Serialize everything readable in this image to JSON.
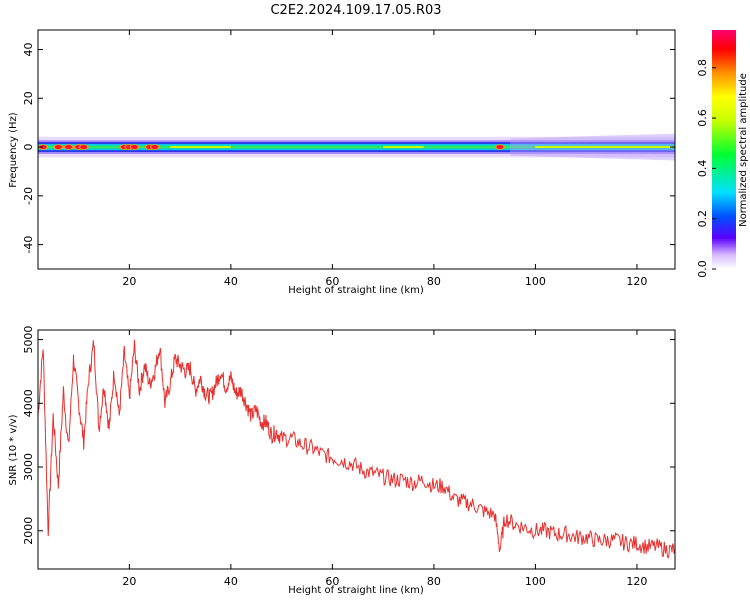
{
  "title": "C2E2.2024.109.17.05.R03",
  "chart_data": [
    {
      "type": "heatmap",
      "title": "",
      "xlabel": "Height of straight line (km)",
      "ylabel": "Frequency (Hz)",
      "xlim": [
        2,
        127.5
      ],
      "ylim": [
        -50,
        48
      ],
      "xticks": [
        20,
        40,
        60,
        80,
        100,
        120
      ],
      "yticks": [
        40,
        20,
        0,
        -20,
        -40
      ],
      "colorbar": {
        "label": "Normalized spectral amplitude",
        "range": [
          0.0,
          0.95
        ],
        "ticks": [
          0.0,
          0.2,
          0.4,
          0.6,
          0.8
        ]
      },
      "band_center_hz": 0,
      "band_halfwidth_hz": [
        3,
        3,
        3,
        3,
        3,
        4
      ],
      "band_profile_height_km": [
        2,
        20,
        40,
        60,
        80,
        100,
        127.5
      ],
      "hotspots_km": [
        3,
        6,
        8,
        10,
        11,
        19,
        20,
        21,
        24,
        25,
        93
      ]
    },
    {
      "type": "line",
      "title": "",
      "xlabel": "Height of straight line (km)",
      "ylabel": "SNR (10 * v/v)",
      "xlim": [
        2,
        127.5
      ],
      "ylim": [
        1400,
        5150
      ],
      "xticks": [
        20,
        40,
        60,
        80,
        100,
        120
      ],
      "yticks": [
        5000,
        4000,
        3000,
        2000
      ],
      "color": "#e8302e",
      "x": [
        2,
        3,
        4,
        5,
        6,
        7,
        8,
        9,
        10,
        11,
        12,
        13,
        14,
        15,
        16,
        17,
        18,
        19,
        20,
        21,
        22,
        23,
        24,
        25,
        26,
        27,
        28,
        29,
        30,
        31,
        32,
        33,
        34,
        35,
        36,
        37,
        38,
        39,
        40,
        41,
        42,
        43,
        44,
        45,
        46,
        47,
        48,
        49,
        50,
        52,
        54,
        56,
        58,
        60,
        62,
        64,
        66,
        68,
        70,
        72,
        74,
        76,
        78,
        80,
        82,
        84,
        86,
        88,
        90,
        92,
        93,
        94,
        96,
        98,
        100,
        102,
        104,
        106,
        108,
        110,
        112,
        114,
        116,
        118,
        120,
        122,
        124,
        126,
        127.5
      ],
      "y": [
        3800,
        4900,
        2000,
        3800,
        2700,
        4200,
        3300,
        4700,
        4000,
        3400,
        4400,
        4950,
        3600,
        4300,
        3600,
        4500,
        3800,
        4800,
        4100,
        4900,
        4200,
        4600,
        4300,
        4500,
        4900,
        4000,
        4300,
        4700,
        4600,
        4500,
        4550,
        4200,
        4400,
        4150,
        4100,
        4300,
        4500,
        4250,
        4400,
        4150,
        4200,
        4000,
        3800,
        3900,
        3700,
        3700,
        3500,
        3550,
        3450,
        3450,
        3350,
        3300,
        3200,
        3150,
        3100,
        3050,
        2950,
        2900,
        2850,
        2800,
        2800,
        2750,
        2800,
        2700,
        2700,
        2500,
        2450,
        2400,
        2300,
        2250,
        1700,
        2200,
        2100,
        2050,
        2000,
        2000,
        1950,
        1950,
        1900,
        1900,
        1850,
        1850,
        1850,
        1800,
        1800,
        1750,
        1750,
        1700,
        1700
      ]
    }
  ]
}
